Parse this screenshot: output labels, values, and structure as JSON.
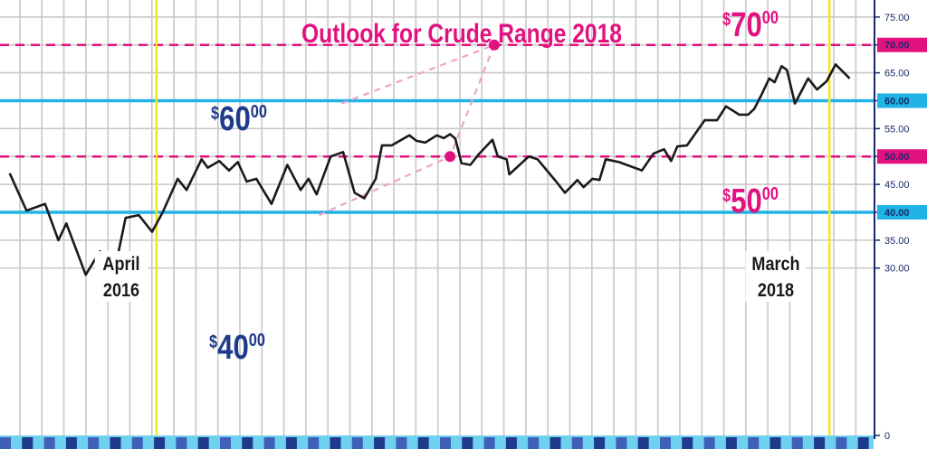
{
  "chart_data": {
    "type": "line",
    "title": "Outlook for Crude Range 2018",
    "ylim": [
      0,
      77
    ],
    "y_ticks": [
      {
        "value": 75,
        "label": "75.00"
      },
      {
        "value": 70,
        "label": "70.00"
      },
      {
        "value": 65,
        "label": "65.00"
      },
      {
        "value": 60,
        "label": "60.00"
      },
      {
        "value": 55,
        "label": "55.00"
      },
      {
        "value": 50,
        "label": "50.00"
      },
      {
        "value": 45,
        "label": "45.00"
      },
      {
        "value": 40,
        "label": "40.00"
      },
      {
        "value": 35,
        "label": "35.00"
      },
      {
        "value": 30,
        "label": "30.00"
      },
      {
        "value": 0,
        "label": "0"
      }
    ],
    "highlighted_ticks": [
      70,
      60,
      50,
      40
    ],
    "grid": true,
    "x_start": "2015-12",
    "x_end": "2018-05",
    "series": [
      {
        "color": "#1a1a1a",
        "points": [
          [
            "2015-12-01",
            47.0
          ],
          [
            "2015-12-20",
            40.3
          ],
          [
            "2016-01-10",
            41.5
          ],
          [
            "2016-01-25",
            35.0
          ],
          [
            "2016-02-03",
            38.0
          ],
          [
            "2016-02-25",
            28.8
          ],
          [
            "2016-03-12",
            33.0
          ],
          [
            "2016-03-28",
            29.0
          ],
          [
            "2016-04-10",
            39.0
          ],
          [
            "2016-04-25",
            39.5
          ],
          [
            "2016-05-10",
            36.5
          ],
          [
            "2016-05-22",
            40.0
          ],
          [
            "2016-06-08",
            46.0
          ],
          [
            "2016-06-18",
            44.0
          ],
          [
            "2016-07-05",
            49.5
          ],
          [
            "2016-07-12",
            48.0
          ],
          [
            "2016-07-25",
            49.2
          ],
          [
            "2016-08-05",
            47.5
          ],
          [
            "2016-08-15",
            49.0
          ],
          [
            "2016-08-25",
            45.5
          ],
          [
            "2016-09-05",
            46.0
          ],
          [
            "2016-09-22",
            41.5
          ],
          [
            "2016-10-10",
            48.5
          ],
          [
            "2016-10-25",
            44.0
          ],
          [
            "2016-11-03",
            46.0
          ],
          [
            "2016-11-12",
            43.2
          ],
          [
            "2016-11-28",
            50.0
          ],
          [
            "2016-12-12",
            50.8
          ],
          [
            "2016-12-25",
            43.5
          ],
          [
            "2017-01-05",
            42.5
          ],
          [
            "2017-01-18",
            46.0
          ],
          [
            "2017-01-25",
            52.0
          ],
          [
            "2017-02-05",
            52.0
          ],
          [
            "2017-02-25",
            53.8
          ],
          [
            "2017-03-05",
            52.8
          ],
          [
            "2017-03-15",
            52.5
          ],
          [
            "2017-03-28",
            53.8
          ],
          [
            "2017-04-05",
            53.3
          ],
          [
            "2017-04-12",
            54.0
          ],
          [
            "2017-04-18",
            53.2
          ],
          [
            "2017-04-25",
            48.8
          ],
          [
            "2017-05-05",
            48.5
          ],
          [
            "2017-05-15",
            50.5
          ],
          [
            "2017-05-30",
            53.0
          ],
          [
            "2017-06-05",
            50.0
          ],
          [
            "2017-06-15",
            49.5
          ],
          [
            "2017-06-18",
            46.8
          ],
          [
            "2017-07-10",
            50.0
          ],
          [
            "2017-07-20",
            49.5
          ],
          [
            "2017-08-10",
            45.5
          ],
          [
            "2017-08-20",
            43.5
          ],
          [
            "2017-09-03",
            45.8
          ],
          [
            "2017-09-10",
            44.5
          ],
          [
            "2017-09-20",
            46.0
          ],
          [
            "2017-09-28",
            45.8
          ],
          [
            "2017-10-05",
            49.5
          ],
          [
            "2017-10-20",
            49.0
          ],
          [
            "2017-11-15",
            47.5
          ],
          [
            "2017-11-28",
            50.5
          ],
          [
            "2017-12-10",
            51.3
          ],
          [
            "2017-12-18",
            49.2
          ],
          [
            "2017-12-25",
            51.8
          ],
          [
            "2018-01-05",
            52.0
          ],
          [
            "2018-01-25",
            56.5
          ],
          [
            "2018-02-08",
            56.5
          ],
          [
            "2018-02-18",
            59.0
          ],
          [
            "2018-03-05",
            57.5
          ],
          [
            "2018-03-15",
            57.5
          ],
          [
            "2018-03-22",
            58.5
          ],
          [
            "2018-03-30",
            61.0
          ],
          [
            "2018-04-08",
            64.0
          ],
          [
            "2018-04-14",
            63.3
          ],
          [
            "2018-04-22",
            66.2
          ],
          [
            "2018-04-28",
            65.5
          ],
          [
            "2018-05-07",
            59.5
          ],
          [
            "2018-05-22",
            64.0
          ],
          [
            "2018-06-01",
            62.0
          ],
          [
            "2018-06-12",
            63.5
          ],
          [
            "2018-06-22",
            66.5
          ],
          [
            "2018-07-08",
            64.0
          ]
        ]
      }
    ],
    "level_lines": [
      {
        "value": 70,
        "style": "dashed",
        "color": "#e2117f"
      },
      {
        "value": 60,
        "style": "solid",
        "color": "#1fb3e6"
      },
      {
        "value": 50,
        "style": "dashed",
        "color": "#e2117f"
      },
      {
        "value": 40,
        "style": "solid",
        "color": "#1fb3e6"
      }
    ],
    "markers": [
      {
        "date": "2016-05-15",
        "label": "April\n2016"
      },
      {
        "date": "2018-06-15",
        "label": "March\n2018"
      }
    ],
    "forecast_points": [
      {
        "date": "2017-06-01",
        "value": 70
      },
      {
        "date": "2017-04-12",
        "value": 50
      }
    ],
    "annotations": [
      {
        "id": "p70",
        "dollars": "70",
        "cents": "00",
        "color": "#e2117f"
      },
      {
        "id": "p60",
        "dollars": "60",
        "cents": "00",
        "color": "#1e3a8a"
      },
      {
        "id": "p50",
        "dollars": "50",
        "cents": "00",
        "color": "#e2117f"
      },
      {
        "id": "p40",
        "dollars": "40",
        "cents": "00",
        "color": "#1e3a8a"
      }
    ]
  },
  "labels": {
    "title": "Outlook for Crude Range 2018",
    "april_line1": "April",
    "april_line2": "2016",
    "march_line1": "March",
    "march_line2": "2018",
    "dollar_sign": "$"
  },
  "colors": {
    "magenta": "#e2117f",
    "cyan": "#1fb3e6",
    "navy": "#1e3a8a",
    "yellow": "#f2e61a",
    "grid": "#c8c8c8"
  }
}
